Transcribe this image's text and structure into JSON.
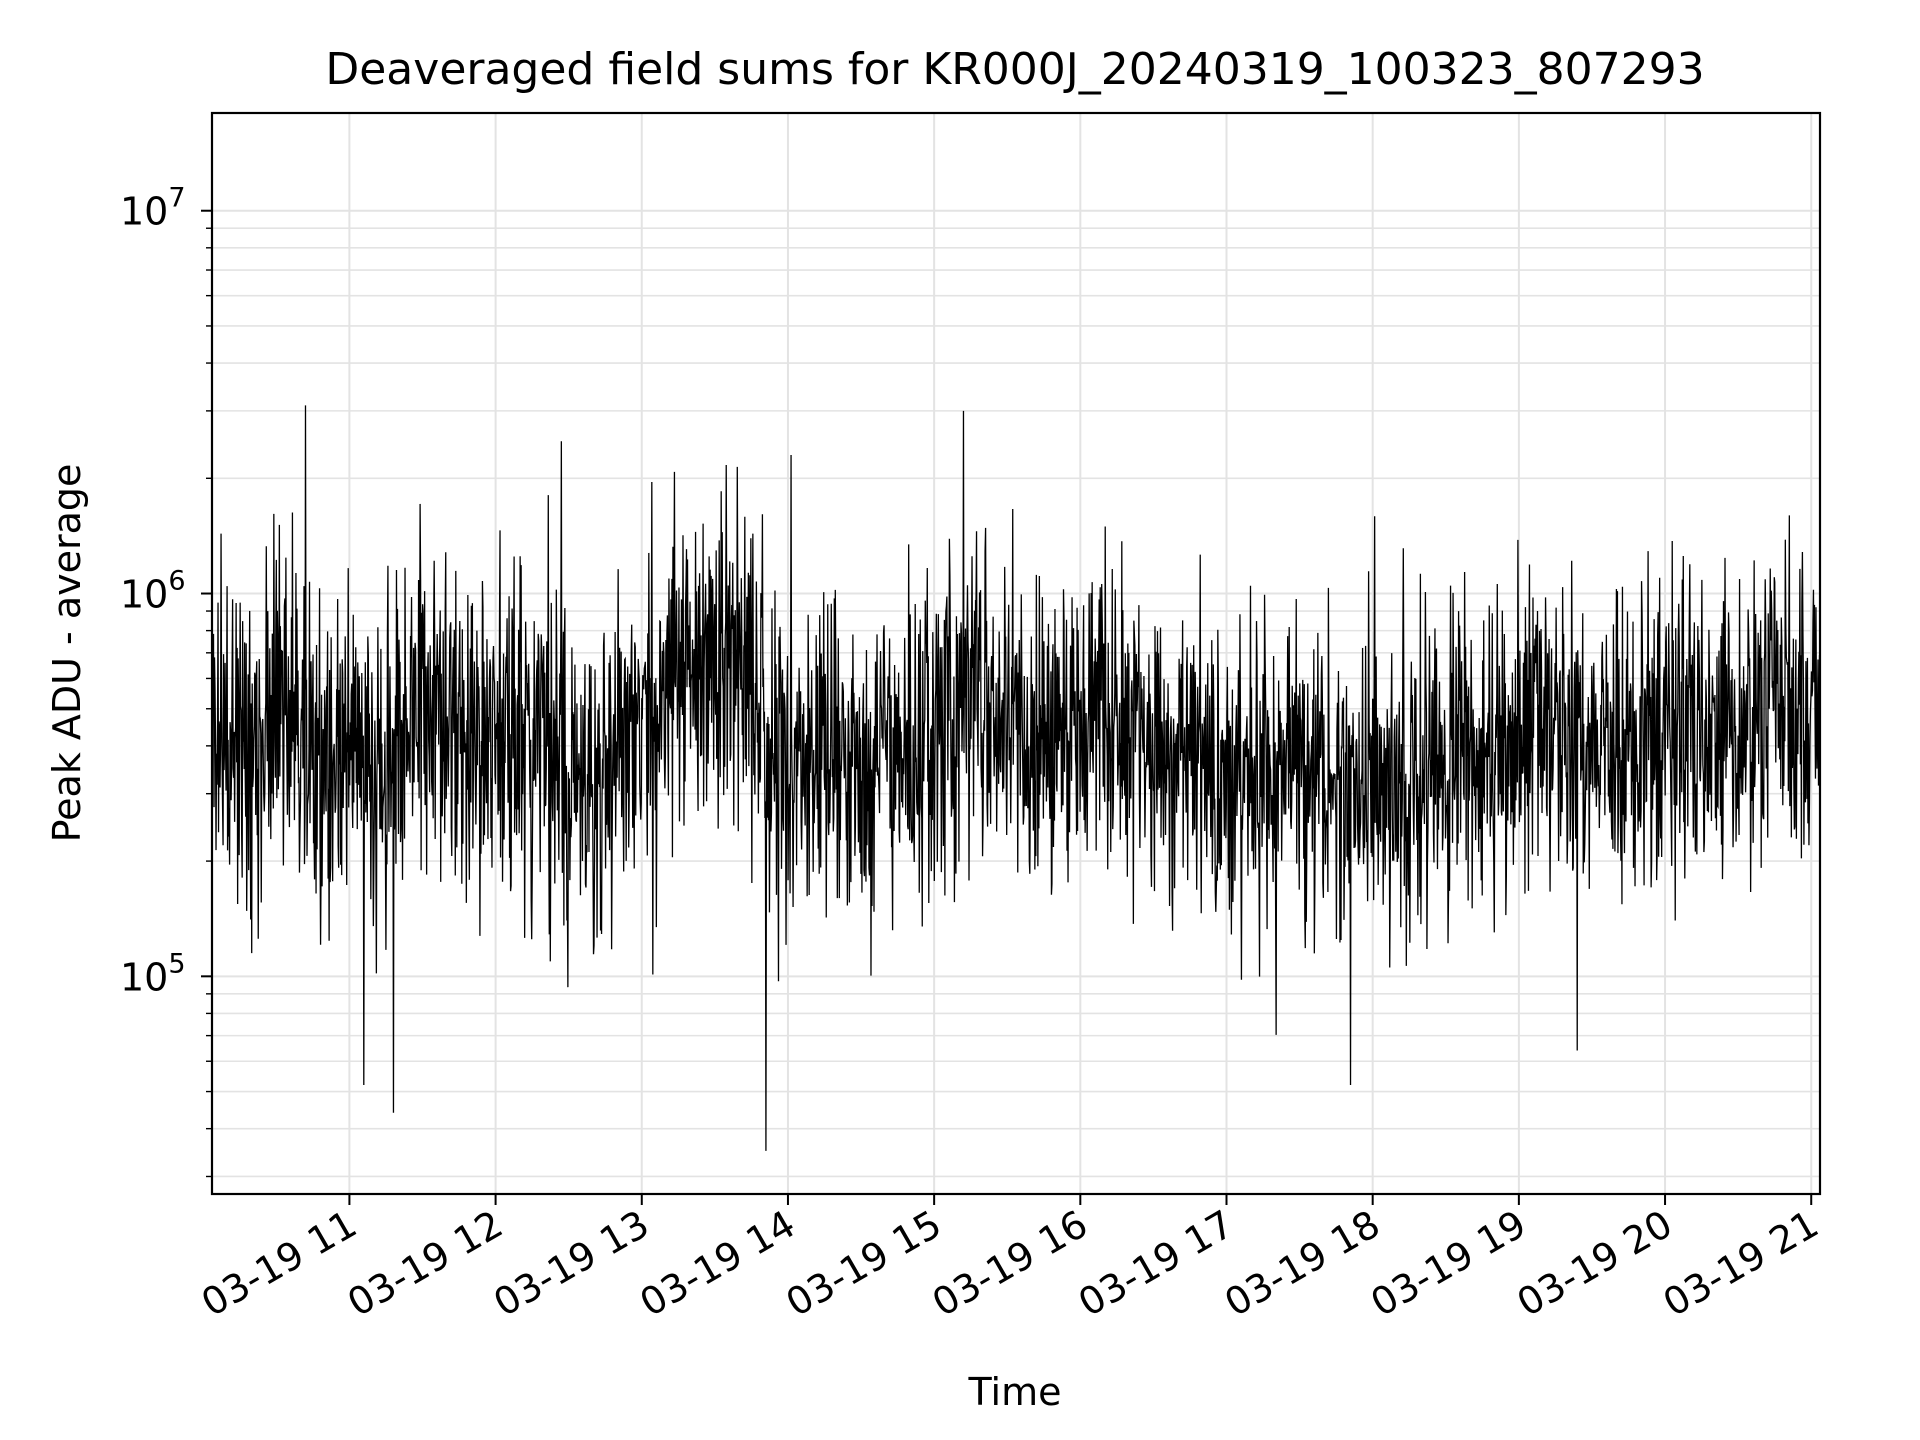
{
  "chart_data": {
    "type": "line",
    "title": "Deaveraged field sums for KR000J_20240319_100323_807293",
    "xlabel": "Time",
    "ylabel": "Peak ADU - average",
    "yscale": "log",
    "ylim": [
      27000,
      18000000
    ],
    "xlim_hours": [
      10.06,
      21.06
    ],
    "grid": true,
    "x_tick_labels": [
      "03-19 11",
      "03-19 12",
      "03-19 13",
      "03-19 14",
      "03-19 15",
      "03-19 16",
      "03-19 17",
      "03-19 18",
      "03-19 19",
      "03-19 20",
      "03-19 21"
    ],
    "x_tick_hours": [
      11,
      12,
      13,
      14,
      15,
      16,
      17,
      18,
      19,
      20,
      21
    ],
    "y_tick_labels": [
      {
        "base": "10",
        "exp": "5",
        "value": 100000
      },
      {
        "base": "10",
        "exp": "6",
        "value": 1000000
      },
      {
        "base": "10",
        "exp": "7",
        "value": 10000000
      }
    ],
    "series": [
      {
        "name": "deaveraged field sum",
        "color": "#000000",
        "x_hours": [
          10.06,
          10.25,
          10.5,
          10.75,
          11.0,
          11.25,
          11.5,
          11.75,
          12.0,
          12.25,
          12.5,
          12.75,
          13.0,
          13.25,
          13.5,
          13.75,
          14.0,
          14.25,
          14.5,
          14.75,
          15.0,
          15.25,
          15.5,
          15.75,
          16.0,
          16.25,
          16.5,
          16.75,
          17.0,
          17.25,
          17.5,
          17.75,
          18.0,
          18.25,
          18.5,
          18.75,
          19.0,
          19.25,
          19.5,
          19.75,
          20.0,
          20.25,
          20.5,
          20.75,
          21.06
        ],
        "median_values": [
          450000,
          420000,
          480000,
          400000,
          380000,
          360000,
          520000,
          480000,
          420000,
          380000,
          350000,
          380000,
          420000,
          600000,
          700000,
          600000,
          350000,
          380000,
          320000,
          350000,
          430000,
          600000,
          500000,
          420000,
          480000,
          450000,
          400000,
          380000,
          350000,
          320000,
          330000,
          320000,
          350000,
          330000,
          330000,
          380000,
          420000,
          470000,
          430000,
          400000,
          450000,
          460000,
          470000,
          480000,
          450000
        ],
        "extremes": [
          {
            "x_hour": 10.7,
            "value": 3100000
          },
          {
            "x_hour": 11.3,
            "value": 44000
          },
          {
            "x_hour": 11.1,
            "value": 52000
          },
          {
            "x_hour": 12.45,
            "value": 2500000
          },
          {
            "x_hour": 13.85,
            "value": 35000
          },
          {
            "x_hour": 14.02,
            "value": 2300000
          },
          {
            "x_hour": 15.2,
            "value": 3000000
          },
          {
            "x_hour": 17.85,
            "value": 52000
          },
          {
            "x_hour": 19.4,
            "value": 64000
          },
          {
            "x_hour": 20.85,
            "value": 1600000
          }
        ]
      }
    ]
  }
}
